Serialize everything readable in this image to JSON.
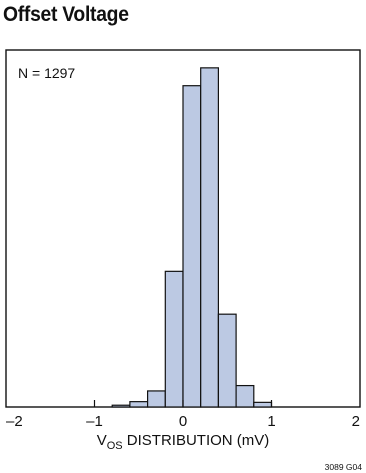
{
  "title": "Offset Voltage",
  "chart_data": {
    "type": "bar",
    "title": "Offset Voltage",
    "xlabel_main": "V",
    "xlabel_sub": "OS",
    "xlabel_rest": " DISTRIBUTION (mV)",
    "annotation": "N = 1297",
    "figure_id": "3089 G04",
    "xlim": [
      -2,
      2
    ],
    "xticks": [
      -2,
      -1,
      0,
      1,
      2
    ],
    "xtick_labels": [
      "–2",
      "–1",
      "0",
      "1",
      "2"
    ],
    "ylim": [
      0,
      100
    ],
    "grid": false,
    "bar_color": "#bcc9e3",
    "bins": [
      {
        "start": -0.8,
        "end": -0.6,
        "value": 0.5
      },
      {
        "start": -0.6,
        "end": -0.4,
        "value": 1.5
      },
      {
        "start": -0.4,
        "end": -0.2,
        "value": 4.5
      },
      {
        "start": -0.2,
        "end": 0.0,
        "value": 38
      },
      {
        "start": 0.0,
        "end": 0.2,
        "value": 90
      },
      {
        "start": 0.2,
        "end": 0.4,
        "value": 95
      },
      {
        "start": 0.4,
        "end": 0.6,
        "value": 26
      },
      {
        "start": 0.6,
        "end": 0.8,
        "value": 6
      },
      {
        "start": 0.8,
        "end": 1.0,
        "value": 1.3
      }
    ]
  }
}
